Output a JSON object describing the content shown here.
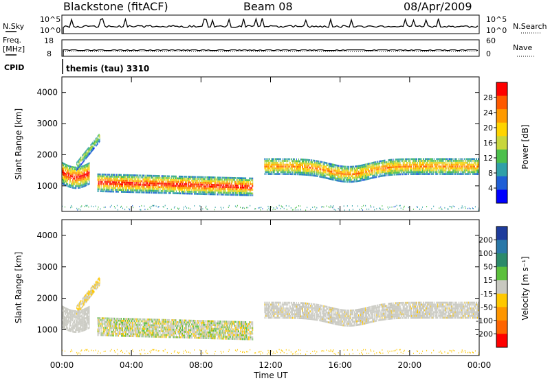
{
  "header": {
    "station": "Blackstone (fitACF)",
    "beam": "Beam 08",
    "date": "08/Apr/2009"
  },
  "status_panels": {
    "nsky_label": "N.Sky",
    "nsearch_label": "N.Search",
    "noise_ticks_left": [
      "10^5",
      "10^0"
    ],
    "noise_ticks_right": [
      "10^5",
      "10^0"
    ],
    "freq_label_line1": "Freq.",
    "freq_label_line2": "[MHz]",
    "freq_ticks": [
      "18",
      "8"
    ],
    "nave_label": "Nave",
    "nave_ticks": [
      "60",
      "0"
    ],
    "cpid_label": "CPID",
    "cpid_value": "themis (tau) 3310"
  },
  "chart_data": [
    {
      "type": "heatmap",
      "title": "",
      "xlabel": "Time UT",
      "ylabel": "Slant Range [km]",
      "x_ticks": [
        "00:00",
        "04:00",
        "08:00",
        "12:00",
        "16:00",
        "20:00",
        "00:00"
      ],
      "x_range_hours": [
        0,
        24
      ],
      "y_ticks": [
        1000,
        2000,
        3000,
        4000
      ],
      "ylim": [
        180,
        4500
      ],
      "colorbar": {
        "label": "Power [dB]",
        "ticks": [
          "4",
          "8",
          "12",
          "16",
          "20",
          "24",
          "28"
        ],
        "range": [
          0,
          30
        ]
      },
      "echo_regions": [
        {
          "name": "morning_band",
          "start_h": 0.0,
          "end_h": 1.6,
          "range_km": [
            950,
            1800
          ],
          "peak_db": 28
        },
        {
          "name": "rising_arc",
          "start_h": 0.8,
          "end_h": 2.2,
          "range_km": [
            1600,
            2700
          ],
          "peak_db": 14
        },
        {
          "name": "day_band",
          "start_h": 2.0,
          "end_h": 11.0,
          "range_km": [
            780,
            1350
          ],
          "peak_db": 28
        },
        {
          "name": "gap_start_h",
          "start_h": 11.0,
          "end_h": 11.6,
          "range_km": [
            0,
            0
          ],
          "peak_db": 0
        },
        {
          "name": "evening_band",
          "start_h": 11.6,
          "end_h": 24.0,
          "range_km": [
            1100,
            1900
          ],
          "peak_db": 22
        }
      ]
    },
    {
      "type": "heatmap",
      "title": "",
      "xlabel": "Time UT",
      "ylabel": "Slant Range [km]",
      "x_ticks": [
        "00:00",
        "04:00",
        "08:00",
        "12:00",
        "16:00",
        "20:00",
        "00:00"
      ],
      "y_ticks": [
        1000,
        2000,
        3000,
        4000
      ],
      "ylim": [
        180,
        4500
      ],
      "colorbar": {
        "label": "Velocity [m s⁻¹]",
        "ticks": [
          "200",
          "100",
          "50",
          "15",
          "-15",
          "-50",
          "-100",
          "-200"
        ],
        "range": [
          -250,
          250
        ],
        "ground_scatter_color": "#c8c8c0"
      }
    }
  ],
  "colors": {
    "power_scale": [
      "#0000ff",
      "#1f5fd6",
      "#2fa0a8",
      "#4cc04c",
      "#c8d63c",
      "#ffd400",
      "#ff9a00",
      "#ff5a00",
      "#ff0000"
    ],
    "velocity_scale": [
      "#1e3c9c",
      "#2a78a8",
      "#2b8a6a",
      "#5cc03c",
      "#c8c8c0",
      "#ffc800",
      "#ff9600",
      "#ff6400",
      "#ff0000"
    ]
  }
}
